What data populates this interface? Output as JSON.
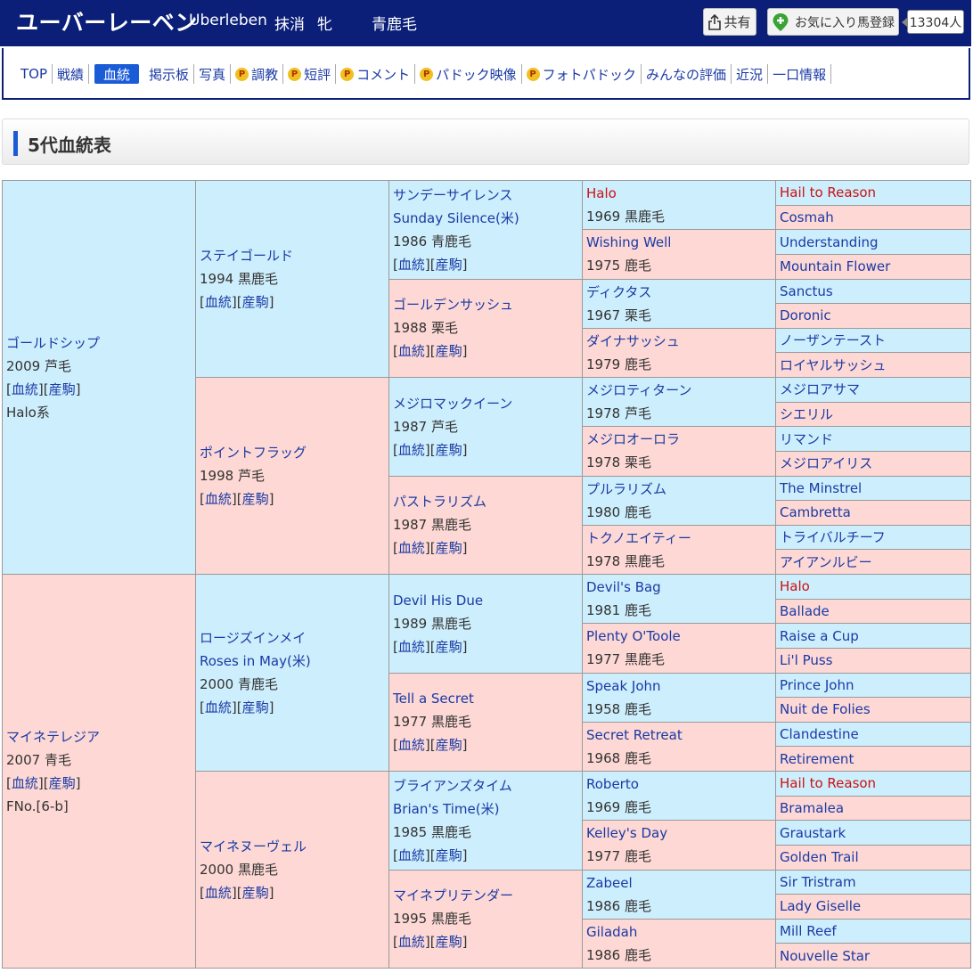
{
  "header": {
    "name": "ユーバーレーベン",
    "name_en": "Uberleben",
    "status": "抹消",
    "sex": "牝",
    "color": "青鹿毛",
    "share_label": "共有",
    "favorite_label": "お気に入り馬登録",
    "favorite_count": "13304人"
  },
  "nav": {
    "items": [
      {
        "label": "TOP",
        "premium": false,
        "active": false
      },
      {
        "label": "戦績",
        "premium": false,
        "active": false
      },
      {
        "label": "血統",
        "premium": false,
        "active": true
      },
      {
        "label": "掲示板",
        "premium": false,
        "active": false
      },
      {
        "label": "写真",
        "premium": false,
        "active": false
      },
      {
        "label": "調教",
        "premium": true,
        "active": false
      },
      {
        "label": "短評",
        "premium": true,
        "active": false
      },
      {
        "label": "コメント",
        "premium": true,
        "active": false
      },
      {
        "label": "パドック映像",
        "premium": true,
        "active": false
      },
      {
        "label": "フォトパドック",
        "premium": true,
        "active": false
      },
      {
        "label": "みんなの評価",
        "premium": false,
        "active": false
      },
      {
        "label": "近況",
        "premium": false,
        "active": false
      },
      {
        "label": "一口情報",
        "premium": false,
        "active": false
      }
    ],
    "premium_mark": "P"
  },
  "section": {
    "title": "5代血統表"
  },
  "links": {
    "pedigree": "血統",
    "progeny": "産駒"
  },
  "pedigree": {
    "g1": [
      {
        "name": "ゴールドシップ",
        "info": "2009 芦毛",
        "extra": "Halo系"
      },
      {
        "name": "マイネテレジア",
        "info": "2007 青毛",
        "extra": "FNo.[6-b]"
      }
    ],
    "g2": [
      {
        "name": "ステイゴールド",
        "info": "1994 黒鹿毛"
      },
      {
        "name": "ポイントフラッグ",
        "info": "1998 芦毛"
      },
      {
        "name": "ロージズインメイ",
        "name2": "Roses in May(米)",
        "info": "2000 青鹿毛"
      },
      {
        "name": "マイネヌーヴェル",
        "info": "2000 黒鹿毛"
      }
    ],
    "g3": [
      {
        "name": "サンデーサイレンス",
        "name2": "Sunday Silence(米)",
        "info": "1986 青鹿毛"
      },
      {
        "name": "ゴールデンサッシュ",
        "info": "1988 栗毛"
      },
      {
        "name": "メジロマックイーン",
        "info": "1987 芦毛"
      },
      {
        "name": "パストラリズム",
        "info": "1987 黒鹿毛"
      },
      {
        "name": "Devil His Due",
        "info": "1989 黒鹿毛"
      },
      {
        "name": "Tell a Secret",
        "info": "1977 黒鹿毛"
      },
      {
        "name": "ブライアンズタイム",
        "name2": "Brian's Time(米)",
        "info": "1985 黒鹿毛"
      },
      {
        "name": "マイネプリテンダー",
        "info": "1995 黒鹿毛"
      }
    ],
    "g4": [
      {
        "name": "Halo",
        "info": "1969 黒鹿毛",
        "red": true
      },
      {
        "name": "Wishing Well",
        "info": "1975 鹿毛"
      },
      {
        "name": "ディクタス",
        "info": "1967 栗毛"
      },
      {
        "name": "ダイナサッシュ",
        "info": "1979 鹿毛"
      },
      {
        "name": "メジロティターン",
        "info": "1978 芦毛"
      },
      {
        "name": "メジロオーロラ",
        "info": "1978 栗毛"
      },
      {
        "name": "プルラリズム",
        "info": "1980 鹿毛"
      },
      {
        "name": "トクノエイティー",
        "info": "1978 黒鹿毛"
      },
      {
        "name": "Devil's Bag",
        "info": "1981 鹿毛"
      },
      {
        "name": "Plenty O'Toole",
        "info": "1977 黒鹿毛"
      },
      {
        "name": "Speak John",
        "info": "1958 鹿毛"
      },
      {
        "name": "Secret Retreat",
        "info": "1968 鹿毛"
      },
      {
        "name": "Roberto",
        "info": "1969 鹿毛"
      },
      {
        "name": "Kelley's Day",
        "info": "1977 鹿毛"
      },
      {
        "name": "Zabeel",
        "info": "1986 鹿毛"
      },
      {
        "name": "Giladah",
        "info": "1986 鹿毛"
      }
    ],
    "g5": [
      {
        "name": "Hail to Reason",
        "red": true
      },
      {
        "name": "Cosmah"
      },
      {
        "name": "Understanding"
      },
      {
        "name": "Mountain Flower"
      },
      {
        "name": "Sanctus"
      },
      {
        "name": "Doronic"
      },
      {
        "name": "ノーザンテースト"
      },
      {
        "name": "ロイヤルサッシュ"
      },
      {
        "name": "メジロアサマ"
      },
      {
        "name": "シエリル"
      },
      {
        "name": "リマンド"
      },
      {
        "name": "メジロアイリス"
      },
      {
        "name": "The Minstrel"
      },
      {
        "name": "Cambretta"
      },
      {
        "name": "トライバルチーフ"
      },
      {
        "name": "アイアンルビー"
      },
      {
        "name": "Halo",
        "red": true
      },
      {
        "name": "Ballade"
      },
      {
        "name": "Raise a Cup"
      },
      {
        "name": "Li'l Puss"
      },
      {
        "name": "Prince John"
      },
      {
        "name": "Nuit de Folies"
      },
      {
        "name": "Clandestine"
      },
      {
        "name": "Retirement"
      },
      {
        "name": "Hail to Reason",
        "red": true
      },
      {
        "name": "Bramalea"
      },
      {
        "name": "Graustark"
      },
      {
        "name": "Golden Trail"
      },
      {
        "name": "Sir Tristram"
      },
      {
        "name": "Lady Giselle"
      },
      {
        "name": "Mill Reef"
      },
      {
        "name": "Nouvelle Star"
      }
    ]
  }
}
